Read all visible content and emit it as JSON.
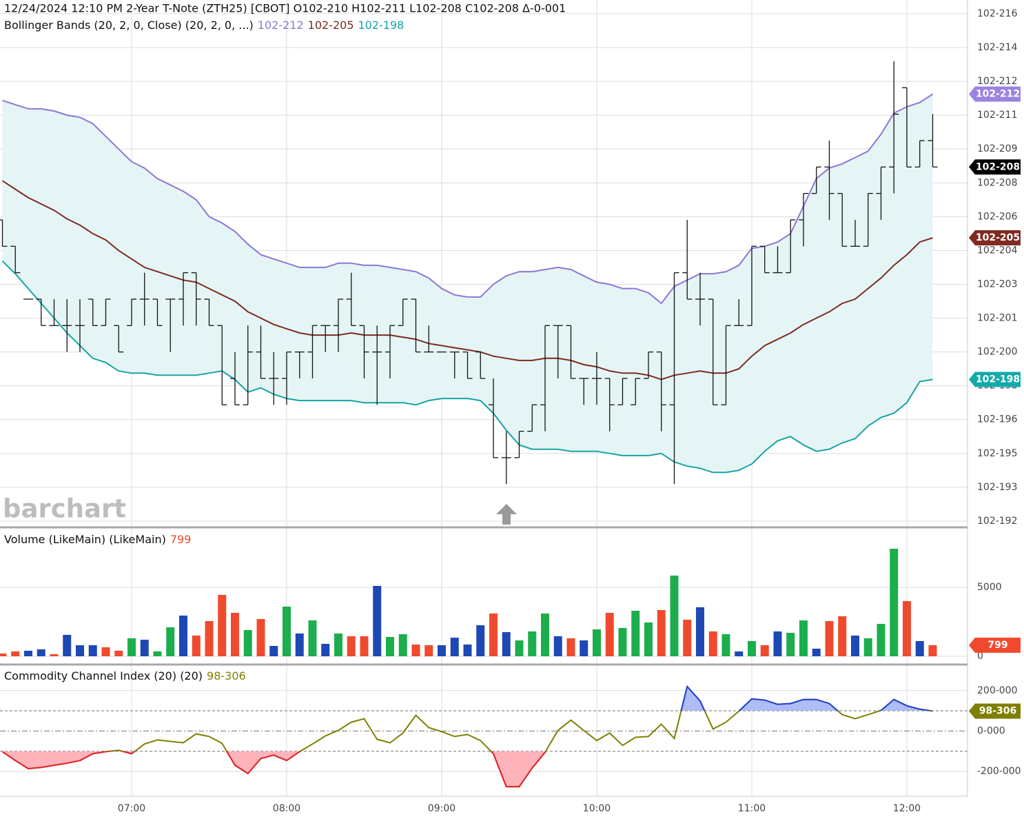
{
  "x_axis": {
    "xlim": [
      369.07,
      743.47
    ],
    "xticks": [
      {
        "value": 420,
        "label": "07:00"
      },
      {
        "value": 480,
        "label": "08:00"
      },
      {
        "value": 540,
        "label": "09:00"
      },
      {
        "value": 600,
        "label": "10:00"
      },
      {
        "value": 660,
        "label": "11:00"
      },
      {
        "value": 720,
        "label": "12:00"
      }
    ],
    "x": [
      370,
      375,
      380,
      385,
      390,
      395,
      400,
      405,
      410,
      415,
      420,
      425,
      430,
      435,
      440,
      445,
      450,
      455,
      460,
      465,
      470,
      475,
      480,
      485,
      490,
      495,
      500,
      505,
      510,
      515,
      520,
      525,
      530,
      535,
      540,
      545,
      550,
      555,
      560,
      565,
      570,
      575,
      580,
      585,
      590,
      595,
      600,
      605,
      610,
      615,
      620,
      625,
      630,
      635,
      640,
      645,
      650,
      655,
      660,
      665,
      670,
      675,
      680,
      685,
      690,
      695,
      700,
      705,
      710,
      715,
      720,
      725,
      730
    ]
  },
  "chart_data": [
    {
      "type": "ohlc",
      "header": "12/24/2024 12:10 PM 2-Year T-Note (ZTH25) [CBOT] O102-210 H102-211 L102-208 C102-208 Δ-0-001",
      "subtitle": "Bollinger Bands (20, 2, 0, Close)  (20, 2, 0, ...)",
      "watermark": "barchart",
      "ylim": [
        191.77,
        216.65
      ],
      "yticks": [
        {
          "value": 216,
          "label": "102-216"
        },
        {
          "value": 214.4,
          "label": "102-214"
        },
        {
          "value": 212.8,
          "label": "102-212"
        },
        {
          "value": 211.2,
          "label": "102-211"
        },
        {
          "value": 209.6,
          "label": "102-209"
        },
        {
          "value": 208,
          "label": "102-208"
        },
        {
          "value": 206.4,
          "label": "102-206"
        },
        {
          "value": 204.8,
          "label": "102-204"
        },
        {
          "value": 203.2,
          "label": "102-203"
        },
        {
          "value": 201.6,
          "label": "102-201"
        },
        {
          "value": 200,
          "label": "102-200"
        },
        {
          "value": 198.4,
          "label": "102-198"
        },
        {
          "value": 196.8,
          "label": "102-196"
        },
        {
          "value": 195.2,
          "label": "102-195"
        },
        {
          "value": 193.6,
          "label": "102-193"
        },
        {
          "value": 192,
          "label": "102-192"
        }
      ],
      "grid": true,
      "bar_color": "#111111",
      "band_fill": "#e5f4f4",
      "close_label": "102-208",
      "close_color": "#000000",
      "ohlc": [
        [
          206.25,
          206.25,
          205,
          205
        ],
        [
          205,
          205,
          203.75,
          203.75
        ],
        [
          202.5,
          202.5,
          202.5,
          202.5
        ],
        [
          202.5,
          202.5,
          201.25,
          201.25
        ],
        [
          201.25,
          202.5,
          201.25,
          201.25
        ],
        [
          201.25,
          202.5,
          200,
          201.25
        ],
        [
          201.25,
          202.5,
          200,
          201.25
        ],
        [
          202.5,
          202.5,
          201.25,
          201.25
        ],
        [
          201.25,
          202.5,
          201.25,
          202.5
        ],
        [
          201.25,
          201.25,
          200,
          200
        ],
        [
          201.25,
          202.5,
          201.25,
          202.5
        ],
        [
          202.5,
          203.75,
          201.25,
          202.5
        ],
        [
          202.5,
          202.5,
          201.25,
          201.25
        ],
        [
          202.5,
          202.5,
          200,
          202.5
        ],
        [
          202.5,
          203.75,
          201.25,
          203.75
        ],
        [
          203.75,
          203.75,
          201.25,
          202.5
        ],
        [
          202.5,
          202.5,
          201.25,
          201.25
        ],
        [
          201.25,
          201.25,
          197.5,
          197.5
        ],
        [
          198.75,
          200,
          197.5,
          197.5
        ],
        [
          197.5,
          201.25,
          197.5,
          200
        ],
        [
          200,
          201.25,
          198.75,
          198.75
        ],
        [
          198.75,
          200,
          197.5,
          198.75
        ],
        [
          198.75,
          200,
          197.5,
          200
        ],
        [
          200,
          200,
          198.75,
          200
        ],
        [
          200,
          201.25,
          198.75,
          201.25
        ],
        [
          201.25,
          201.25,
          200,
          201.25
        ],
        [
          201.25,
          202.5,
          200,
          202.5
        ],
        [
          202.5,
          203.75,
          201.25,
          201.25
        ],
        [
          201.25,
          201.25,
          198.75,
          200
        ],
        [
          200,
          201.25,
          197.5,
          200
        ],
        [
          200,
          201.25,
          198.75,
          201.25
        ],
        [
          201.25,
          202.5,
          201.25,
          202.5
        ],
        [
          202.5,
          202.5,
          200,
          200
        ],
        [
          200,
          201.25,
          200,
          200
        ],
        [
          200,
          200,
          200,
          200
        ],
        [
          200,
          200,
          198.75,
          200
        ],
        [
          200,
          200,
          198.75,
          198.75
        ],
        [
          200,
          200,
          198.75,
          198.75
        ],
        [
          197.5,
          198.75,
          195,
          195
        ],
        [
          195,
          196.25,
          193.75,
          195
        ],
        [
          195,
          196.25,
          195,
          196.25
        ],
        [
          196.25,
          197.5,
          196.25,
          197.5
        ],
        [
          197.5,
          201.25,
          196.25,
          201.25
        ],
        [
          201.25,
          201.25,
          198.75,
          201.25
        ],
        [
          201.25,
          201.25,
          198.75,
          198.75
        ],
        [
          198.75,
          198.75,
          197.5,
          198.75
        ],
        [
          198.75,
          200,
          197.5,
          198.75
        ],
        [
          198.75,
          198.75,
          196.25,
          197.5
        ],
        [
          197.5,
          198.75,
          197.5,
          198.75
        ],
        [
          197.5,
          198.75,
          197.5,
          198.75
        ],
        [
          198.75,
          200,
          198.75,
          200
        ],
        [
          200,
          200,
          196.25,
          197.5
        ],
        [
          197.5,
          203.75,
          193.75,
          203.75
        ],
        [
          203.75,
          206.25,
          202.5,
          202.5
        ],
        [
          202.5,
          203.75,
          201.25,
          202.5
        ],
        [
          202.5,
          202.5,
          197.5,
          197.5
        ],
        [
          197.5,
          201.25,
          197.5,
          201.25
        ],
        [
          201.25,
          202.5,
          201.25,
          201.25
        ],
        [
          201.25,
          205,
          201.25,
          205
        ],
        [
          205,
          205,
          203.75,
          203.75
        ],
        [
          203.75,
          205,
          203.75,
          203.75
        ],
        [
          203.75,
          206.25,
          203.75,
          206.25
        ],
        [
          206.25,
          207.5,
          205,
          207.5
        ],
        [
          207.5,
          208.75,
          207.5,
          208.75
        ],
        [
          208.75,
          210,
          206.25,
          207.5
        ],
        [
          207.5,
          207.5,
          205,
          205
        ],
        [
          205,
          206.25,
          205,
          205
        ],
        [
          205,
          207.5,
          205,
          207.5
        ],
        [
          207.5,
          208.75,
          206.25,
          208.75
        ],
        [
          208.75,
          213.75,
          207.5,
          211.25
        ],
        [
          212.5,
          212.5,
          208.75,
          208.75
        ],
        [
          208.75,
          210,
          208.75,
          210
        ],
        [
          210,
          211.25,
          208.75,
          208.75
        ]
      ],
      "series": [
        {
          "color": "#8a78d4",
          "badge_color": "#9b83e0",
          "last_label": "102-212",
          "values": [
            211.9,
            211.7,
            211.5,
            211.5,
            211.4,
            211.2,
            211.1,
            210.8,
            210.2,
            209.6,
            209.0,
            208.7,
            208.2,
            207.9,
            207.6,
            207.2,
            206.4,
            206.1,
            205.7,
            205.1,
            204.6,
            204.4,
            204.2,
            204.0,
            204.0,
            204.0,
            204.2,
            204.2,
            204.1,
            204.1,
            204.0,
            203.9,
            203.8,
            203.5,
            203.0,
            202.7,
            202.6,
            202.6,
            203.2,
            203.6,
            203.8,
            203.8,
            203.9,
            204.0,
            203.9,
            203.6,
            203.3,
            203.2,
            203.0,
            203.0,
            202.8,
            202.3,
            203.1,
            203.4,
            203.7,
            203.7,
            203.8,
            204.1,
            204.9,
            205.0,
            205.2,
            205.6,
            206.9,
            208.2,
            208.7,
            208.9,
            209.2,
            209.5,
            210.3,
            211.3,
            211.6,
            211.8,
            212.2
          ]
        },
        {
          "color": "#7a2b22",
          "badge_color": "#7f2b22",
          "last_label": "102-205",
          "values": [
            208.1,
            207.7,
            207.3,
            207.0,
            206.7,
            206.3,
            206.0,
            205.6,
            205.3,
            204.8,
            204.4,
            204.0,
            203.8,
            203.6,
            203.4,
            203.3,
            203.0,
            202.7,
            202.4,
            201.9,
            201.6,
            201.3,
            201.1,
            200.9,
            200.8,
            200.8,
            200.8,
            200.9,
            200.8,
            200.8,
            200.8,
            200.7,
            200.6,
            200.4,
            200.3,
            200.2,
            200.1,
            200.0,
            199.8,
            199.7,
            199.6,
            199.6,
            199.7,
            199.7,
            199.6,
            199.4,
            199.3,
            199.1,
            199.0,
            199.0,
            198.9,
            198.7,
            198.9,
            199.0,
            199.1,
            199.0,
            199.0,
            199.2,
            199.8,
            200.3,
            200.6,
            200.9,
            201.3,
            201.6,
            201.9,
            202.3,
            202.5,
            203.0,
            203.5,
            204.1,
            204.6,
            205.2,
            205.4
          ]
        },
        {
          "color": "#16a3a3",
          "badge_color": "#13a9a9",
          "last_label": "102-198",
          "values": [
            204.3,
            203.7,
            203.0,
            202.3,
            201.6,
            200.9,
            200.3,
            199.7,
            199.5,
            199.1,
            199.0,
            199.0,
            198.9,
            198.9,
            198.9,
            198.9,
            199.0,
            199.1,
            198.7,
            198.1,
            198.3,
            198.0,
            197.8,
            197.7,
            197.7,
            197.7,
            197.7,
            197.7,
            197.6,
            197.6,
            197.6,
            197.6,
            197.5,
            197.7,
            197.8,
            197.8,
            197.8,
            197.7,
            197.1,
            196.3,
            195.6,
            195.4,
            195.4,
            195.4,
            195.3,
            195.3,
            195.3,
            195.2,
            195.1,
            195.1,
            195.1,
            195.2,
            194.8,
            194.6,
            194.5,
            194.3,
            194.3,
            194.4,
            194.7,
            195.3,
            195.8,
            196.0,
            195.6,
            195.3,
            195.4,
            195.7,
            195.9,
            196.5,
            196.9,
            197.1,
            197.6,
            198.6,
            198.7
          ]
        }
      ]
    },
    {
      "type": "bar",
      "title": "Volume (LikeMain)  (LikeMain)",
      "ylim": [
        -500,
        9250
      ],
      "yticks": [
        0,
        5000
      ],
      "grid": true,
      "values": [
        200,
        350,
        400,
        500,
        150,
        1550,
        800,
        800,
        650,
        400,
        1300,
        1200,
        350,
        2100,
        2950,
        1500,
        2550,
        4450,
        3150,
        1900,
        2700,
        750,
        3600,
        1650,
        2600,
        900,
        1650,
        1450,
        1450,
        5100,
        1400,
        1600,
        850,
        800,
        800,
        1350,
        850,
        2250,
        3100,
        1750,
        1150,
        1800,
        3100,
        1450,
        1300,
        1150,
        1950,
        3150,
        2050,
        3300,
        2450,
        3350,
        5850,
        2650,
        3550,
        1800,
        1600,
        350,
        1100,
        800,
        1800,
        1700,
        2600,
        550,
        2550,
        2900,
        1500,
        1300,
        2350,
        7800,
        4000,
        1100,
        799
      ],
      "colors": [
        "#f04a2e",
        "#f04a2e",
        "#1e48b4",
        "#1e48b4",
        "#f04a2e",
        "#1e48b4",
        "#1e48b4",
        "#1e48b4",
        "#f04a2e",
        "#f04a2e",
        "#1cae4c",
        "#1e48b4",
        "#1cae4c",
        "#1cae4c",
        "#1e48b4",
        "#f04a2e",
        "#f04a2e",
        "#f04a2e",
        "#f04a2e",
        "#1cae4c",
        "#f04a2e",
        "#1e48b4",
        "#1cae4c",
        "#1e48b4",
        "#1cae4c",
        "#1e48b4",
        "#1cae4c",
        "#f04a2e",
        "#f04a2e",
        "#1e48b4",
        "#1cae4c",
        "#1cae4c",
        "#f04a2e",
        "#f04a2e",
        "#1e48b4",
        "#1e48b4",
        "#1e48b4",
        "#1e48b4",
        "#f04a2e",
        "#1e48b4",
        "#1cae4c",
        "#1cae4c",
        "#1cae4c",
        "#1e48b4",
        "#f04a2e",
        "#1e48b4",
        "#1cae4c",
        "#f04a2e",
        "#1cae4c",
        "#1cae4c",
        "#1cae4c",
        "#f04a2e",
        "#1cae4c",
        "#f04a2e",
        "#1e48b4",
        "#f04a2e",
        "#1cae4c",
        "#1e48b4",
        "#1cae4c",
        "#f04a2e",
        "#1e48b4",
        "#1cae4c",
        "#1cae4c",
        "#1e48b4",
        "#f04a2e",
        "#f04a2e",
        "#1e48b4",
        "#1cae4c",
        "#1cae4c",
        "#1cae4c",
        "#f04a2e",
        "#1e48b4",
        "#f04a2e"
      ]
    },
    {
      "type": "line",
      "title": "Commodity Channel Index (20)  (20)",
      "ylim": [
        -322,
        322
      ],
      "yticks": [
        {
          "value": 200,
          "label": "200-000"
        },
        {
          "value": 0,
          "label": "0-000"
        },
        {
          "value": -200,
          "label": "-200-000"
        }
      ],
      "grid": true,
      "levels": [
        100,
        -100
      ],
      "color": "#7f7f00",
      "above_color": "#2040d8",
      "below_color": "#e5202c",
      "above_fill": "#aebcf7",
      "below_fill": "#ffb3bb",
      "badge_color": "#7f7f00",
      "last_label": "98-306",
      "values": [
        -102,
        -146,
        -186,
        -180,
        -169,
        -159,
        -146,
        -112,
        -102,
        -95,
        -112,
        -64,
        -44,
        -51,
        -58,
        -14,
        -27,
        -61,
        -169,
        -210,
        -136,
        -119,
        -146,
        -102,
        -64,
        -24,
        3,
        44,
        61,
        -41,
        -58,
        -10,
        78,
        17,
        -3,
        -27,
        -17,
        -47,
        -112,
        -275,
        -275,
        -183,
        -105,
        3,
        54,
        3,
        -47,
        -10,
        -71,
        -31,
        -27,
        34,
        -37,
        220,
        149,
        10,
        44,
        98,
        159,
        153,
        132,
        136,
        156,
        156,
        136,
        81,
        61,
        81,
        102,
        156,
        125,
        108,
        98.306
      ]
    }
  ]
}
